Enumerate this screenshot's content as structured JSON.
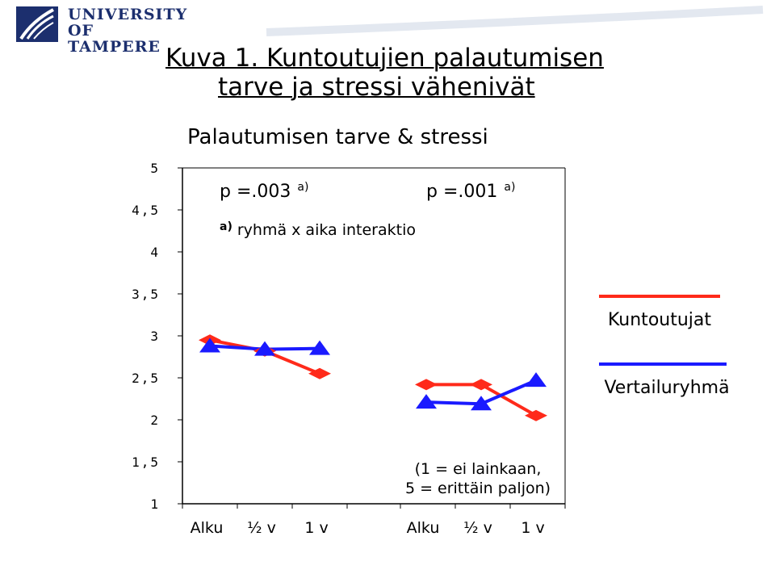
{
  "header": {
    "logo_line1": "UNIVERSITY",
    "logo_line2": "OF TAMPERE"
  },
  "title": {
    "line1": "Kuva 1. Kuntoutujien palautumisen",
    "line2": "tarve ja stressi vähenivät"
  },
  "colors": {
    "kuntoutujat": "#ff2a1a",
    "vertailuryhma": "#1a1aff",
    "axis": "#000000"
  },
  "chart_data": {
    "type": "line",
    "title": "Palautumisen tarve & stressi",
    "ylim": [
      1,
      5
    ],
    "yticks": [
      "5",
      "4,5",
      "4",
      "3,5",
      "3",
      "2,5",
      "2",
      "1,5",
      "1"
    ],
    "categories": [
      "Alku",
      "½ v",
      "1 v",
      "Alku",
      "½ v",
      "1 v"
    ],
    "grid": false,
    "legend_position": "right",
    "groups": [
      {
        "annotation_p": "p =.003",
        "annotation_sup": "a)",
        "series": [
          {
            "name": "Kuntoutujat",
            "marker": "diamond",
            "values": [
              2.95,
              2.82,
              2.55
            ]
          },
          {
            "name": "Vertailuryhmä",
            "marker": "triangle",
            "values": [
              2.88,
              2.84,
              2.85
            ]
          }
        ]
      },
      {
        "annotation_p": "p =.001",
        "annotation_sup": "a)",
        "series": [
          {
            "name": "Kuntoutujat",
            "marker": "diamond",
            "values": [
              2.42,
              2.42,
              2.05
            ]
          },
          {
            "name": "Vertailuryhmä",
            "marker": "triangle",
            "values": [
              2.21,
              2.19,
              2.47
            ]
          }
        ]
      }
    ],
    "footnote_sup": "a)",
    "footnote": "ryhmä x aika interaktio",
    "scale_note_line1": "(1 = ei lainkaan,",
    "scale_note_line2": "5 = erittäin paljon)",
    "legend": [
      "Kuntoutujat",
      "Vertailuryhmä"
    ]
  }
}
